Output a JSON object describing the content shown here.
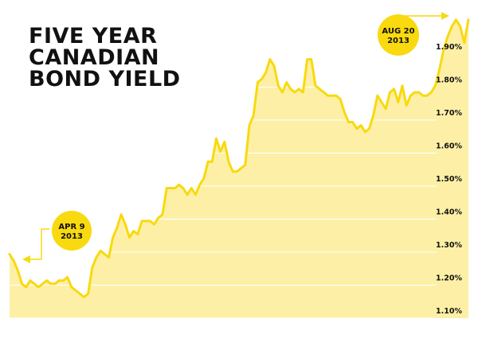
{
  "title": {
    "line1": "FIVE YEAR",
    "line2": "CANADIAN",
    "line3": "BOND YIELD"
  },
  "colors": {
    "area_fill": "#fdf0a6",
    "line": "#f9d90f",
    "badge": "#f9d90f",
    "grid": "#ffffff",
    "arrow": "#f9d90f",
    "text": "#111111"
  },
  "chart_data": {
    "type": "area",
    "title": "FIVE YEAR CANADIAN BOND YIELD",
    "xlabel": "",
    "ylabel": "",
    "ylim": [
      1.05,
      2.0
    ],
    "grid": true,
    "yticks": [
      1.1,
      1.2,
      1.3,
      1.4,
      1.5,
      1.6,
      1.7,
      1.8,
      1.9
    ],
    "ytick_labels": [
      "1.10%",
      "1.20%",
      "1.30%",
      "1.40%",
      "1.50%",
      "1.60%",
      "1.70%",
      "1.80%",
      "1.90%"
    ],
    "series": [
      {
        "values": [
          1.27,
          1.25,
          1.22,
          1.18,
          1.17,
          1.19,
          1.18,
          1.17,
          1.18,
          1.19,
          1.18,
          1.18,
          1.19,
          1.19,
          1.2,
          1.17,
          1.16,
          1.15,
          1.14,
          1.15,
          1.23,
          1.26,
          1.28,
          1.27,
          1.26,
          1.32,
          1.35,
          1.39,
          1.36,
          1.32,
          1.34,
          1.33,
          1.37,
          1.37,
          1.37,
          1.36,
          1.38,
          1.39,
          1.47,
          1.47,
          1.47,
          1.48,
          1.47,
          1.45,
          1.47,
          1.45,
          1.48,
          1.5,
          1.55,
          1.55,
          1.62,
          1.58,
          1.61,
          1.55,
          1.52,
          1.52,
          1.53,
          1.54,
          1.66,
          1.69,
          1.79,
          1.8,
          1.82,
          1.86,
          1.84,
          1.78,
          1.76,
          1.79,
          1.77,
          1.76,
          1.77,
          1.76,
          1.86,
          1.86,
          1.78,
          1.77,
          1.76,
          1.75,
          1.75,
          1.75,
          1.74,
          1.7,
          1.67,
          1.67,
          1.65,
          1.66,
          1.64,
          1.65,
          1.69,
          1.75,
          1.73,
          1.71,
          1.76,
          1.77,
          1.73,
          1.78,
          1.72,
          1.75,
          1.76,
          1.76,
          1.75,
          1.75,
          1.76,
          1.78,
          1.83,
          1.89,
          1.93,
          1.96,
          1.98,
          1.96,
          1.91,
          1.98
        ]
      }
    ],
    "annotations": [
      {
        "line1": "APR 9",
        "line2": "2013",
        "point": "start",
        "arrow": "left"
      },
      {
        "line1": "AUG 20",
        "line2": "2013",
        "point": "end",
        "arrow": "right"
      }
    ]
  }
}
